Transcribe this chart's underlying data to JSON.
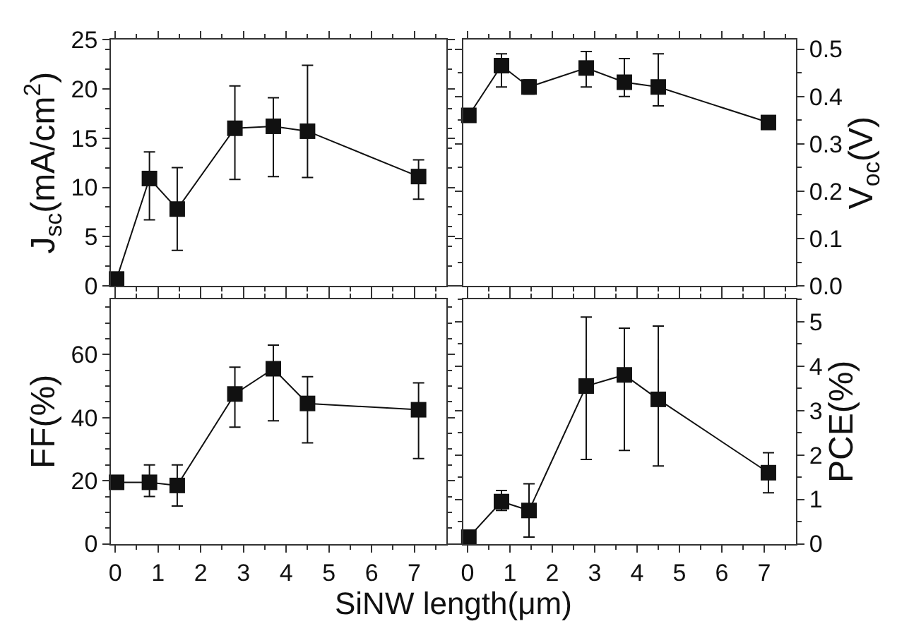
{
  "chart_data": [
    {
      "type": "line",
      "ylabel": "J$_{sc}$(mA/cm$^{2}$)",
      "marker": "square",
      "tick_labels": "y",
      "x": [
        0.03,
        0.8,
        1.45,
        2.8,
        3.7,
        4.5,
        7.1
      ],
      "xlim": [
        -0.1,
        7.75
      ],
      "xticks": [
        0,
        1,
        2,
        3,
        4,
        5,
        6,
        7
      ],
      "ylim": [
        0,
        25
      ],
      "yticks": [
        0,
        5,
        10,
        15,
        20,
        25
      ],
      "series": [
        {
          "color": "#111111",
          "values": [
            0.7,
            10.9,
            7.8,
            16.0,
            16.2,
            15.7,
            11.1
          ],
          "errors": [
            null,
            [
              6.7,
              13.6
            ],
            [
              3.6,
              12.0
            ],
            [
              10.8,
              20.3
            ],
            [
              11.1,
              19.1
            ],
            [
              11.0,
              22.4
            ],
            [
              8.8,
              12.8
            ]
          ]
        }
      ]
    },
    {
      "type": "line",
      "ylabel": "V$_{oc}$(V)",
      "marker": "square",
      "tick_labels": "y",
      "x": [
        0.03,
        0.8,
        1.45,
        2.8,
        3.7,
        4.5,
        7.1
      ],
      "xlim": [
        -0.1,
        7.75
      ],
      "xticks": [
        0,
        1,
        2,
        3,
        4,
        5,
        6,
        7
      ],
      "ylim": [
        0,
        0.52
      ],
      "yticks": [
        {
          "value": 0,
          "label": "0.0"
        },
        0.1,
        0.2,
        0.3,
        0.4,
        0.5
      ],
      "series": [
        {
          "color": "#111111",
          "values": [
            0.36,
            0.465,
            0.42,
            0.46,
            0.43,
            0.42,
            0.345
          ],
          "errors": [
            null,
            [
              0.42,
              0.49
            ],
            [
              0.405,
              0.435
            ],
            [
              0.42,
              0.495
            ],
            [
              0.4,
              0.48
            ],
            [
              0.38,
              0.49
            ],
            null
          ]
        }
      ]
    },
    {
      "type": "line",
      "ylabel": "FF(%)",
      "xlabel": "SiNW length(μm)",
      "marker": "square",
      "x": [
        0.03,
        0.8,
        1.45,
        2.8,
        3.7,
        4.5,
        7.1
      ],
      "xlim": [
        -0.1,
        7.75
      ],
      "xticks": [
        0,
        1,
        2,
        3,
        4,
        5,
        6,
        7
      ],
      "ylim": [
        0,
        77.5
      ],
      "yticks": [
        0,
        20,
        40,
        60
      ],
      "series": [
        {
          "color": "#111111",
          "values": [
            19.5,
            19.5,
            18.5,
            47.5,
            55.5,
            44.5,
            42.5
          ],
          "errors": [
            null,
            [
              15,
              25
            ],
            [
              12,
              25
            ],
            [
              37,
              56
            ],
            [
              39,
              63
            ],
            [
              32,
              53
            ],
            [
              27,
              51
            ]
          ]
        }
      ]
    },
    {
      "type": "line",
      "ylabel": "PCE(%)",
      "marker": "square",
      "x": [
        0.03,
        0.8,
        1.45,
        2.8,
        3.7,
        4.5,
        7.1
      ],
      "xlim": [
        -0.1,
        7.75
      ],
      "xticks": [
        0,
        1,
        2,
        3,
        4,
        5,
        6,
        7
      ],
      "ylim": [
        0,
        5.5
      ],
      "yticks": [
        0,
        1,
        2,
        3,
        4,
        5
      ],
      "series": [
        {
          "color": "#111111",
          "values": [
            0.15,
            0.95,
            0.75,
            3.55,
            3.8,
            3.25,
            1.6
          ],
          "errors": [
            null,
            [
              0.75,
              1.2
            ],
            [
              0.15,
              1.35
            ],
            [
              1.9,
              5.1
            ],
            [
              2.1,
              4.85
            ],
            [
              1.75,
              4.9
            ],
            [
              1.15,
              2.05
            ]
          ]
        }
      ]
    }
  ]
}
